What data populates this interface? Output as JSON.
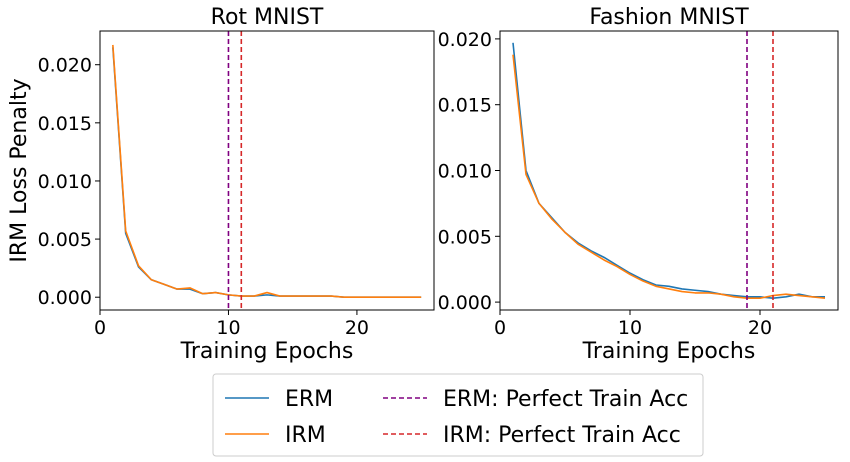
{
  "chart_data": [
    {
      "type": "line",
      "title": "Rot MNIST",
      "xlabel": "Training Epochs",
      "ylabel": "IRM Loss Penalty",
      "xlim": [
        0,
        26
      ],
      "ylim": [
        -0.0011,
        0.0229
      ],
      "xticks": [
        0,
        10,
        20
      ],
      "xtick_labels": [
        "0",
        "10",
        "20"
      ],
      "yticks": [
        0,
        0.005,
        0.01,
        0.015,
        0.02
      ],
      "ytick_labels": [
        "0.000",
        "0.005",
        "0.010",
        "0.015",
        "0.020"
      ],
      "x": [
        1,
        2,
        3,
        4,
        5,
        6,
        7,
        8,
        9,
        10,
        11,
        12,
        13,
        14,
        15,
        16,
        17,
        18,
        19,
        20,
        21,
        22,
        23,
        24,
        25
      ],
      "series": [
        {
          "name": "ERM",
          "color": "#1f77b4",
          "values": [
            0.0215,
            0.0055,
            0.0026,
            0.0015,
            0.0011,
            0.0007,
            0.0007,
            0.0003,
            0.0004,
            0.0002,
            0.0001,
            0.0001,
            0.0002,
            0.0001,
            0.0001,
            0.0001,
            0.0001,
            0.0001,
            0.0,
            0.0,
            0.0,
            0.0,
            0.0,
            0.0,
            0.0
          ]
        },
        {
          "name": "IRM",
          "color": "#ff7f0e",
          "values": [
            0.0217,
            0.0057,
            0.0027,
            0.0015,
            0.0011,
            0.0007,
            0.0008,
            0.0003,
            0.0004,
            0.0002,
            0.0001,
            0.0001,
            0.0004,
            0.0001,
            0.0001,
            0.0001,
            0.0001,
            0.0001,
            0.0,
            0.0,
            0.0,
            0.0,
            0.0,
            0.0,
            0.0
          ]
        }
      ],
      "vlines": [
        {
          "name": "ERM: Perfect Train Acc",
          "x": 10,
          "color": "#800080"
        },
        {
          "name": "IRM: Perfect Train Acc",
          "x": 11,
          "color": "#d62728"
        }
      ]
    },
    {
      "type": "line",
      "title": "Fashion MNIST",
      "xlabel": "Training Epochs",
      "ylabel": "",
      "xlim": [
        0,
        26
      ],
      "ylim": [
        -0.0006,
        0.0206
      ],
      "xticks": [
        0,
        10,
        20
      ],
      "xtick_labels": [
        "0",
        "10",
        "20"
      ],
      "yticks": [
        0,
        0.005,
        0.01,
        0.015,
        0.02
      ],
      "ytick_labels": [
        "0.000",
        "0.005",
        "0.010",
        "0.015",
        "0.020"
      ],
      "x": [
        1,
        2,
        3,
        4,
        5,
        6,
        7,
        8,
        9,
        10,
        11,
        12,
        13,
        14,
        15,
        16,
        17,
        18,
        19,
        20,
        21,
        22,
        23,
        24,
        25
      ],
      "series": [
        {
          "name": "ERM",
          "color": "#1f77b4",
          "values": [
            0.0197,
            0.01,
            0.0075,
            0.0064,
            0.0053,
            0.0045,
            0.0039,
            0.0034,
            0.0028,
            0.0022,
            0.0017,
            0.0013,
            0.0012,
            0.001,
            0.0009,
            0.0008,
            0.0006,
            0.0005,
            0.0004,
            0.0004,
            0.0003,
            0.0004,
            0.0006,
            0.0004,
            0.0004
          ]
        },
        {
          "name": "IRM",
          "color": "#ff7f0e",
          "values": [
            0.0188,
            0.0097,
            0.0075,
            0.0063,
            0.0053,
            0.0044,
            0.0038,
            0.0032,
            0.0027,
            0.0021,
            0.0016,
            0.0012,
            0.001,
            0.0008,
            0.0007,
            0.0007,
            0.0006,
            0.0004,
            0.0003,
            0.0003,
            0.0005,
            0.0006,
            0.0005,
            0.0004,
            0.0003
          ]
        }
      ],
      "vlines": [
        {
          "name": "ERM: Perfect Train Acc",
          "x": 19,
          "color": "#800080"
        },
        {
          "name": "IRM: Perfect Train Acc",
          "x": 21,
          "color": "#d62728"
        }
      ]
    }
  ],
  "legend": {
    "placement": "bottom-center",
    "entries": [
      {
        "label": "ERM",
        "color": "#1f77b4",
        "style": "solid"
      },
      {
        "label": "IRM",
        "color": "#ff7f0e",
        "style": "solid"
      },
      {
        "label": "ERM: Perfect Train Acc",
        "color": "#800080",
        "style": "dashed"
      },
      {
        "label": "IRM: Perfect Train Acc",
        "color": "#d62728",
        "style": "dashed"
      }
    ]
  }
}
